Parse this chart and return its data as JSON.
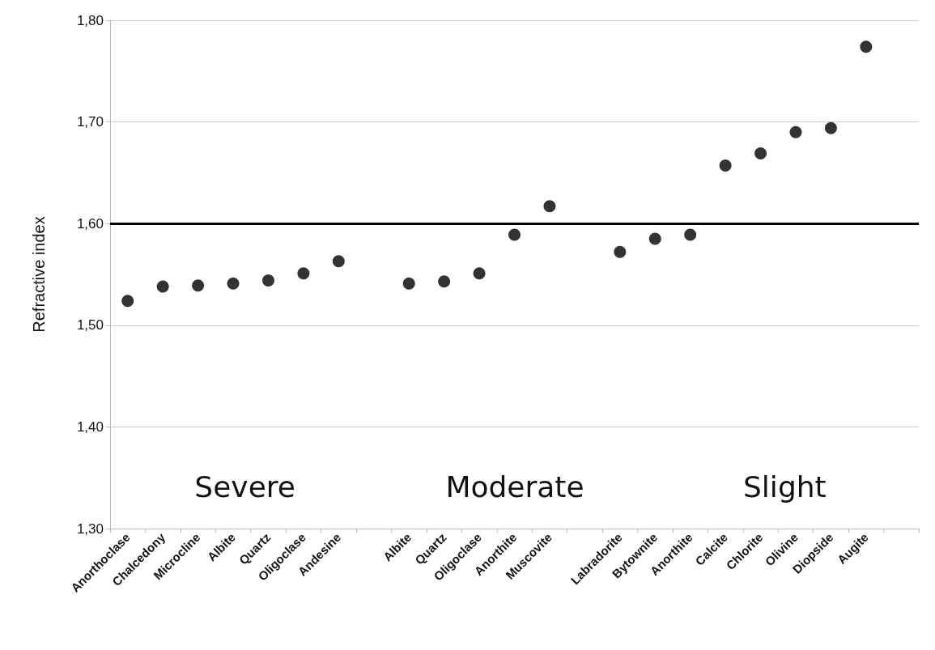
{
  "chart_data": {
    "type": "scatter",
    "ylabel": "Refractive index",
    "categories": [
      "Anorthoclase",
      "Chalcedony",
      "Microcline",
      "Albite",
      "Quartz",
      "Oligoclase",
      "Andesine",
      null,
      "Albite",
      "Quartz",
      "Oligoclase",
      "Anorthite",
      "Muscovite",
      null,
      "Labradorite",
      "Bytownite",
      "Anorthite",
      "Calcite",
      "Chlorite",
      "Olivine",
      "Diopside",
      "Augite",
      null
    ],
    "series": [
      {
        "color": "#000000",
        "values": [
          1.524,
          1.538,
          1.539,
          1.541,
          1.544,
          1.551,
          1.563,
          null,
          1.541,
          1.543,
          1.551,
          1.589,
          1.617,
          null,
          1.572,
          1.585,
          1.589,
          1.657,
          1.669,
          1.69,
          1.694,
          1.774,
          null
        ]
      }
    ],
    "ylim": [
      1.3,
      1.8
    ],
    "yticks": [
      {
        "value": 1.3,
        "label": "1,30"
      },
      {
        "value": 1.4,
        "label": "1,40"
      },
      {
        "value": 1.5,
        "label": "1,50"
      },
      {
        "value": 1.6,
        "label": "1,60"
      },
      {
        "value": 1.7,
        "label": "1,70"
      },
      {
        "value": 1.8,
        "label": "1,80"
      }
    ],
    "grid": "y",
    "marker": "circle",
    "ref_lines": [
      {
        "axis": "y",
        "value": 1.6,
        "color": "#000000",
        "line_style": "solid"
      }
    ],
    "annotations": [
      "Severe",
      "Moderate",
      "Slight"
    ]
  }
}
